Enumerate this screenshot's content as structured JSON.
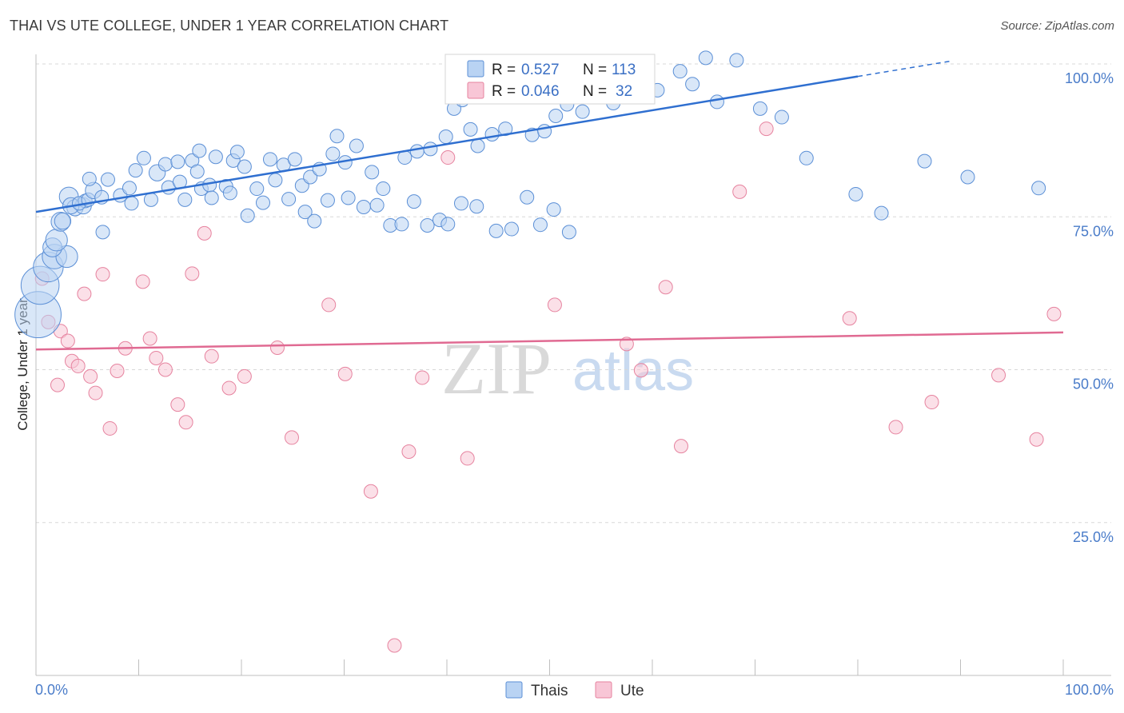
{
  "title": "THAI VS UTE COLLEGE, UNDER 1 YEAR CORRELATION CHART",
  "source": "Source: ZipAtlas.com",
  "watermark": {
    "zip": "ZIP",
    "atlas": "atlas"
  },
  "legend": {
    "r_label": "R =",
    "n_label": "N =",
    "thais": {
      "r": "0.527",
      "n": "113"
    },
    "ute": {
      "r": "0.046",
      "n": "32"
    }
  },
  "bottom_legend": {
    "thais": "Thais",
    "ute": "Ute"
  },
  "colors": {
    "thais_fill": "#b9d3f3",
    "thais_stroke": "#5b8fd6",
    "thais_line": "#2f6fd0",
    "ute_fill": "#f8c6d6",
    "ute_stroke": "#e6839f",
    "ute_line": "#e06a92",
    "tick_text": "#4a7cc9",
    "grid": "#d8d8d8"
  },
  "chart_data": {
    "type": "scatter",
    "xlabel": "",
    "ylabel": "College, Under 1 year",
    "xlim": [
      0,
      100
    ],
    "ylim": [
      0,
      100
    ],
    "x_tick_labels": [
      "0.0%",
      "100.0%"
    ],
    "y_ticks": [
      25,
      50,
      75,
      100
    ],
    "y_tick_labels": [
      "25.0%",
      "50.0%",
      "75.0%",
      "100.0%"
    ],
    "grid": true,
    "series": [
      {
        "name": "Thais",
        "trend": {
          "x0": 0,
          "y0": 75.8,
          "x1": 100,
          "y1": 103.5,
          "solid_until": 80
        },
        "points": [
          [
            0.2,
            59,
            34
          ],
          [
            0.4,
            63.8,
            28
          ],
          [
            1.2,
            66.8,
            22
          ],
          [
            1.8,
            68.5,
            18
          ],
          [
            3,
            68.5,
            16
          ],
          [
            1.6,
            70,
            14
          ],
          [
            2,
            71.2,
            16
          ],
          [
            2.4,
            74.2,
            14
          ],
          [
            2.6,
            74.3,
            12
          ],
          [
            3.2,
            78.3,
            14
          ],
          [
            3.8,
            76.5,
            12
          ],
          [
            4.6,
            76.8,
            12
          ],
          [
            3.4,
            76.8,
            12
          ],
          [
            4.8,
            77.6,
            10
          ],
          [
            4.2,
            77.2,
            10
          ],
          [
            5.1,
            77.8,
            10
          ],
          [
            5.6,
            79.3,
            12
          ],
          [
            6.4,
            78.2,
            10
          ],
          [
            5.2,
            81.2,
            10
          ],
          [
            6.5,
            72.5,
            10
          ],
          [
            7,
            81.1,
            10
          ],
          [
            8.2,
            78.5,
            10
          ],
          [
            9.3,
            77.2,
            10
          ],
          [
            9.1,
            79.7,
            10
          ],
          [
            9.7,
            82.6,
            10
          ],
          [
            10.5,
            84.6,
            10
          ],
          [
            11.8,
            82.2,
            12
          ],
          [
            12.6,
            83.6,
            10
          ],
          [
            13.8,
            84,
            10
          ],
          [
            15.2,
            84.2,
            10
          ],
          [
            15.9,
            85.8,
            10
          ],
          [
            14.5,
            77.8,
            10
          ],
          [
            16.1,
            79.6,
            10
          ],
          [
            16.9,
            80.2,
            10
          ],
          [
            17.1,
            78.1,
            10
          ],
          [
            17.5,
            84.8,
            10
          ],
          [
            18.5,
            80,
            10
          ],
          [
            19.2,
            84.2,
            10
          ],
          [
            19.6,
            85.6,
            10
          ],
          [
            20.3,
            83.2,
            10
          ],
          [
            21.5,
            79.6,
            10
          ],
          [
            22.8,
            84.4,
            10
          ],
          [
            23.3,
            81,
            10
          ],
          [
            24.1,
            83.5,
            10
          ],
          [
            25.2,
            84.4,
            10
          ],
          [
            25.9,
            80.1,
            10
          ],
          [
            26.7,
            81.5,
            10
          ],
          [
            27.6,
            82.8,
            10
          ],
          [
            28.9,
            85.3,
            10
          ],
          [
            29.3,
            88.2,
            10
          ],
          [
            30.1,
            83.9,
            10
          ],
          [
            31.2,
            86.6,
            10
          ],
          [
            32.7,
            82.3,
            10
          ],
          [
            33.8,
            79.6,
            10
          ],
          [
            35.9,
            84.7,
            10
          ],
          [
            37.1,
            85.7,
            10
          ],
          [
            38.4,
            86.1,
            10
          ],
          [
            39.9,
            88.1,
            10
          ],
          [
            40.7,
            92.7,
            10
          ],
          [
            41.5,
            94.1,
            10
          ],
          [
            42.3,
            89.3,
            10
          ],
          [
            43,
            86.6,
            10
          ],
          [
            44.4,
            88.5,
            10
          ],
          [
            45.7,
            89.4,
            10
          ],
          [
            46.9,
            96.5,
            10
          ],
          [
            47.6,
            95.4,
            10
          ],
          [
            48.3,
            88.4,
            10
          ],
          [
            49.5,
            89,
            10
          ],
          [
            50.6,
            91.5,
            10
          ],
          [
            51.7,
            93.4,
            10
          ],
          [
            52.1,
            97.2,
            10
          ],
          [
            53.2,
            92.2,
            10
          ],
          [
            54.1,
            100.3,
            10
          ],
          [
            56.2,
            93.6,
            10
          ],
          [
            58.4,
            99.1,
            10
          ],
          [
            60.5,
            95.7,
            10
          ],
          [
            62.7,
            98.8,
            10
          ],
          [
            63.9,
            96.7,
            10
          ],
          [
            65.2,
            101,
            10
          ],
          [
            66.3,
            93.8,
            10
          ],
          [
            68.2,
            100.6,
            10
          ],
          [
            70.5,
            92.7,
            10
          ],
          [
            72.6,
            91.3,
            10
          ],
          [
            75,
            84.6,
            10
          ],
          [
            79.8,
            78.7,
            10
          ],
          [
            82.3,
            75.6,
            10
          ],
          [
            86.5,
            84.1,
            10
          ],
          [
            90.7,
            81.5,
            10
          ],
          [
            97.6,
            79.7,
            10
          ],
          [
            11.2,
            77.8,
            10
          ],
          [
            12.9,
            79.8,
            10
          ],
          [
            14,
            80.7,
            10
          ],
          [
            15.7,
            82.4,
            10
          ],
          [
            18.9,
            78.9,
            10
          ],
          [
            20.6,
            75.2,
            10
          ],
          [
            22.1,
            77.3,
            10
          ],
          [
            24.6,
            77.9,
            10
          ],
          [
            26.2,
            75.8,
            10
          ],
          [
            27.1,
            74.3,
            10
          ],
          [
            28.4,
            77.7,
            10
          ],
          [
            30.4,
            78.1,
            10
          ],
          [
            31.9,
            76.6,
            10
          ],
          [
            33.2,
            76.9,
            10
          ],
          [
            34.5,
            73.6,
            10
          ],
          [
            35.6,
            73.8,
            10
          ],
          [
            36.8,
            77.5,
            10
          ],
          [
            38.1,
            73.6,
            10
          ],
          [
            39.3,
            74.5,
            10
          ],
          [
            40.1,
            73.8,
            10
          ],
          [
            41.4,
            77.2,
            10
          ],
          [
            42.9,
            76.7,
            10
          ],
          [
            44.8,
            72.7,
            10
          ],
          [
            46.3,
            73,
            10
          ],
          [
            47.8,
            78.2,
            10
          ],
          [
            49.1,
            73.7,
            10
          ],
          [
            50.4,
            76.2,
            10
          ],
          [
            51.9,
            72.5,
            10
          ]
        ]
      },
      {
        "name": "Ute",
        "trend": {
          "x0": 0,
          "y0": 53.3,
          "x1": 100,
          "y1": 56.1
        },
        "points": [
          [
            0.6,
            64.9,
            10
          ],
          [
            1.2,
            57.8,
            10
          ],
          [
            2.4,
            56.3,
            10
          ],
          [
            2.1,
            47.5,
            10
          ],
          [
            3.1,
            54.7,
            10
          ],
          [
            3.5,
            51.4,
            10
          ],
          [
            4.1,
            50.6,
            10
          ],
          [
            4.7,
            62.4,
            10
          ],
          [
            5.3,
            48.9,
            10
          ],
          [
            5.8,
            46.2,
            10
          ],
          [
            6.5,
            65.6,
            10
          ],
          [
            7.2,
            40.4,
            10
          ],
          [
            7.9,
            49.8,
            10
          ],
          [
            8.7,
            53.5,
            10
          ],
          [
            10.4,
            64.4,
            10
          ],
          [
            11.1,
            55.1,
            10
          ],
          [
            11.7,
            51.9,
            10
          ],
          [
            12.6,
            50,
            10
          ],
          [
            13.8,
            44.3,
            10
          ],
          [
            14.6,
            41.4,
            10
          ],
          [
            15.2,
            65.7,
            10
          ],
          [
            16.4,
            72.3,
            10
          ],
          [
            17.1,
            52.2,
            10
          ],
          [
            18.8,
            47,
            10
          ],
          [
            20.3,
            48.9,
            10
          ],
          [
            23.5,
            53.6,
            10
          ],
          [
            24.9,
            38.9,
            10
          ],
          [
            28.5,
            60.6,
            10
          ],
          [
            30.1,
            49.3,
            10
          ],
          [
            32.6,
            30.1,
            10
          ],
          [
            34.9,
            4.9,
            10
          ],
          [
            36.3,
            36.6,
            10
          ],
          [
            37.6,
            48.7,
            10
          ],
          [
            40.1,
            84.7,
            10
          ],
          [
            42,
            35.5,
            10
          ],
          [
            50.5,
            60.6,
            10
          ],
          [
            57.5,
            54.2,
            10
          ],
          [
            58.9,
            49.9,
            10
          ],
          [
            61.3,
            63.5,
            10
          ],
          [
            62.8,
            37.5,
            10
          ],
          [
            68.5,
            79.1,
            10
          ],
          [
            71.1,
            89.4,
            10
          ],
          [
            79.2,
            58.4,
            10
          ],
          [
            83.7,
            40.6,
            10
          ],
          [
            87.2,
            44.7,
            10
          ],
          [
            93.7,
            49.1,
            10
          ],
          [
            97.4,
            38.6,
            10
          ],
          [
            99.1,
            59.1,
            10
          ]
        ]
      }
    ]
  }
}
